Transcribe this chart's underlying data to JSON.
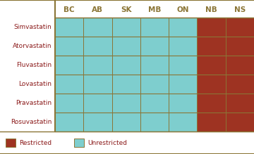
{
  "rows": [
    "Simvastatin",
    "Atorvastatin",
    "Fluvastatin",
    "Lovastatin",
    "Pravastatin",
    "Rosuvastatin"
  ],
  "cols": [
    "BC",
    "AB",
    "SK",
    "MB",
    "ON",
    "NB",
    "NS"
  ],
  "restricted_cols": [
    "NB",
    "NS"
  ],
  "unrestricted_cols": [
    "BC",
    "AB",
    "SK",
    "MB",
    "ON"
  ],
  "color_restricted": "#9e3322",
  "color_unrestricted": "#7ecece",
  "color_grid": "#8B7536",
  "color_row_label": "#8B1A1A",
  "color_col_label": "#8B7536",
  "color_legend_text": "#8B1A1A",
  "color_background": "#ffffff",
  "color_top_border": "#8B7536",
  "legend_restricted": "Restricted",
  "legend_unrestricted": "Unrestricted",
  "fig_width": 3.6,
  "fig_height": 2.19,
  "dpi": 100
}
